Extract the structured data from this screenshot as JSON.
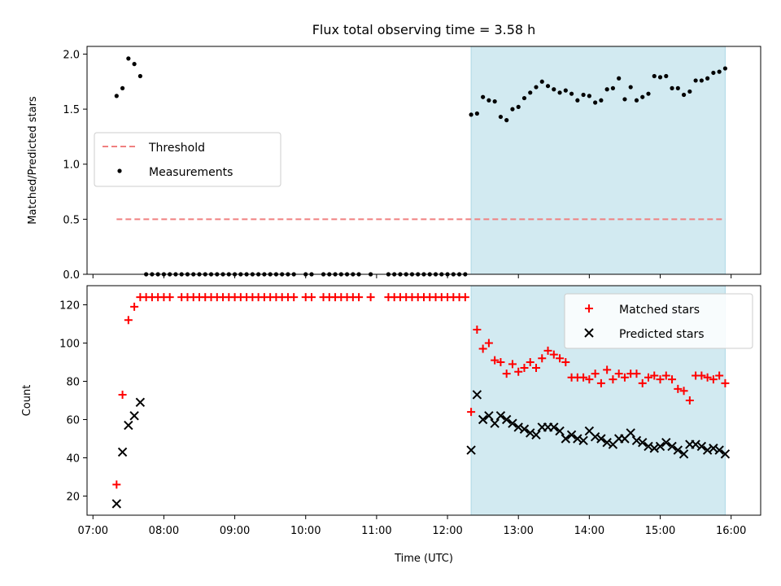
{
  "chart_data": [
    {
      "type": "scatter",
      "title": "Flux total observing time = 3.58 h",
      "xlabel": "",
      "ylabel": "Matched/Predicted stars",
      "xlim": [
        "06:55",
        "16:25"
      ],
      "ylim": [
        0,
        2.07
      ],
      "yticks": [
        0.0,
        0.5,
        1.0,
        1.5,
        2.0
      ],
      "ytick_labels": [
        "0.0",
        "0.5",
        "1.0",
        "1.5",
        "2.0"
      ],
      "grid": false,
      "legend_placement": "center-left",
      "shaded_region": {
        "x_start": "12:20",
        "x_end": "15:55",
        "color": "#add8e6"
      },
      "series": [
        {
          "name": "Threshold",
          "style": "dashed-line",
          "color": "#f08080",
          "x": [
            "07:20",
            "15:55"
          ],
          "y": [
            0.5,
            0.5
          ]
        },
        {
          "name": "Measurements",
          "style": "dot",
          "color": "#000000",
          "x": [
            "07:20",
            "07:25",
            "07:30",
            "07:35",
            "07:40",
            "07:45",
            "07:50",
            "07:55",
            "08:00",
            "08:05",
            "08:10",
            "08:15",
            "08:20",
            "08:25",
            "08:30",
            "08:35",
            "08:40",
            "08:45",
            "08:50",
            "08:55",
            "09:00",
            "09:05",
            "09:10",
            "09:15",
            "09:20",
            "09:25",
            "09:30",
            "09:35",
            "09:40",
            "09:45",
            "09:50",
            "10:00",
            "10:05",
            "10:15",
            "10:20",
            "10:25",
            "10:30",
            "10:35",
            "10:40",
            "10:45",
            "10:55",
            "11:10",
            "11:15",
            "11:20",
            "11:25",
            "11:30",
            "11:35",
            "11:40",
            "11:45",
            "11:50",
            "11:55",
            "12:00",
            "12:05",
            "12:10",
            "12:15",
            "12:20",
            "12:25",
            "12:30",
            "12:35",
            "12:40",
            "12:45",
            "12:50",
            "12:55",
            "13:00",
            "13:05",
            "13:10",
            "13:15",
            "13:20",
            "13:25",
            "13:30",
            "13:35",
            "13:40",
            "13:45",
            "13:50",
            "13:55",
            "14:00",
            "14:05",
            "14:10",
            "14:15",
            "14:20",
            "14:25",
            "14:30",
            "14:35",
            "14:40",
            "14:45",
            "14:50",
            "14:55",
            "15:00",
            "15:05",
            "15:10",
            "15:15",
            "15:20",
            "15:25",
            "15:30",
            "15:35",
            "15:40",
            "15:45",
            "15:50",
            "15:55"
          ],
          "y": [
            1.62,
            1.69,
            1.96,
            1.91,
            1.8,
            0,
            0,
            0,
            0,
            0,
            0,
            0,
            0,
            0,
            0,
            0,
            0,
            0,
            0,
            0,
            0,
            0,
            0,
            0,
            0,
            0,
            0,
            0,
            0,
            0,
            0,
            0,
            0,
            0,
            0,
            0,
            0,
            0,
            0,
            0,
            0,
            0,
            0,
            0,
            0,
            0,
            0,
            0,
            0,
            0,
            0,
            0,
            0,
            0,
            0,
            1.45,
            1.46,
            1.61,
            1.58,
            1.57,
            1.43,
            1.4,
            1.5,
            1.52,
            1.6,
            1.65,
            1.7,
            1.75,
            1.71,
            1.68,
            1.65,
            1.67,
            1.64,
            1.58,
            1.63,
            1.62,
            1.56,
            1.58,
            1.68,
            1.69,
            1.78,
            1.59,
            1.7,
            1.58,
            1.61,
            1.64,
            1.8,
            1.79,
            1.8,
            1.69,
            1.69,
            1.63,
            1.66,
            1.76,
            1.76,
            1.78,
            1.83,
            1.84,
            1.87
          ]
        }
      ]
    },
    {
      "type": "scatter",
      "title": "",
      "xlabel": "Time (UTC)",
      "ylabel": "Count",
      "xlim": [
        "06:55",
        "16:25"
      ],
      "ylim": [
        10,
        130
      ],
      "yticks": [
        20,
        40,
        60,
        80,
        100,
        120
      ],
      "ytick_labels": [
        "20",
        "40",
        "60",
        "80",
        "100",
        "120"
      ],
      "xticks": [
        "07:00",
        "08:00",
        "09:00",
        "10:00",
        "11:00",
        "12:00",
        "13:00",
        "14:00",
        "15:00",
        "16:00"
      ],
      "grid": false,
      "legend_placement": "upper-right",
      "shaded_region": {
        "x_start": "12:20",
        "x_end": "15:55",
        "color": "#add8e6"
      },
      "series": [
        {
          "name": "Matched stars",
          "style": "plus",
          "color": "#ff0000",
          "x": [
            "07:20",
            "07:25",
            "07:30",
            "07:35",
            "07:40",
            "07:45",
            "07:50",
            "07:55",
            "08:00",
            "08:05",
            "08:15",
            "08:20",
            "08:25",
            "08:30",
            "08:35",
            "08:40",
            "08:45",
            "08:50",
            "08:55",
            "09:00",
            "09:05",
            "09:10",
            "09:15",
            "09:20",
            "09:25",
            "09:30",
            "09:35",
            "09:40",
            "09:45",
            "09:50",
            "10:00",
            "10:05",
            "10:15",
            "10:20",
            "10:25",
            "10:30",
            "10:35",
            "10:40",
            "10:45",
            "10:55",
            "11:10",
            "11:15",
            "11:20",
            "11:25",
            "11:30",
            "11:35",
            "11:40",
            "11:45",
            "11:50",
            "11:55",
            "12:00",
            "12:05",
            "12:10",
            "12:15",
            "12:20",
            "12:25",
            "12:30",
            "12:35",
            "12:40",
            "12:45",
            "12:50",
            "12:55",
            "13:00",
            "13:05",
            "13:10",
            "13:15",
            "13:20",
            "13:25",
            "13:30",
            "13:35",
            "13:40",
            "13:45",
            "13:50",
            "13:55",
            "14:00",
            "14:05",
            "14:10",
            "14:15",
            "14:20",
            "14:25",
            "14:30",
            "14:35",
            "14:40",
            "14:45",
            "14:50",
            "14:55",
            "15:00",
            "15:05",
            "15:10",
            "15:15",
            "15:20",
            "15:25",
            "15:30",
            "15:35",
            "15:40",
            "15:45",
            "15:50",
            "15:55"
          ],
          "y": [
            26,
            73,
            112,
            119,
            124,
            124,
            124,
            124,
            124,
            124,
            124,
            124,
            124,
            124,
            124,
            124,
            124,
            124,
            124,
            124,
            124,
            124,
            124,
            124,
            124,
            124,
            124,
            124,
            124,
            124,
            124,
            124,
            124,
            124,
            124,
            124,
            124,
            124,
            124,
            124,
            124,
            124,
            124,
            124,
            124,
            124,
            124,
            124,
            124,
            124,
            124,
            124,
            124,
            124,
            64,
            107,
            97,
            100,
            91,
            90,
            84,
            89,
            85,
            87,
            90,
            87,
            92,
            96,
            94,
            92,
            90,
            82,
            82,
            82,
            81,
            84,
            79,
            86,
            81,
            84,
            82,
            84,
            84,
            79,
            82,
            83,
            81,
            83,
            81,
            76,
            75,
            70,
            83,
            83,
            82,
            81,
            83,
            79
          ]
        },
        {
          "name": "Predicted stars",
          "style": "x",
          "color": "#000000",
          "x": [
            "07:20",
            "07:25",
            "07:30",
            "07:35",
            "07:40",
            "12:20",
            "12:25",
            "12:30",
            "12:35",
            "12:40",
            "12:45",
            "12:50",
            "12:55",
            "13:00",
            "13:05",
            "13:10",
            "13:15",
            "13:20",
            "13:25",
            "13:30",
            "13:35",
            "13:40",
            "13:45",
            "13:50",
            "13:55",
            "14:00",
            "14:05",
            "14:10",
            "14:15",
            "14:20",
            "14:25",
            "14:30",
            "14:35",
            "14:40",
            "14:45",
            "14:50",
            "14:55",
            "15:00",
            "15:05",
            "15:10",
            "15:15",
            "15:20",
            "15:25",
            "15:30",
            "15:35",
            "15:40",
            "15:45",
            "15:50",
            "15:55"
          ],
          "y": [
            16,
            43,
            57,
            62,
            69,
            44,
            73,
            60,
            62,
            58,
            62,
            60,
            58,
            56,
            55,
            53,
            52,
            56,
            56,
            56,
            54,
            50,
            52,
            50,
            49,
            54,
            51,
            50,
            48,
            47,
            50,
            50,
            53,
            49,
            48,
            46,
            45,
            46,
            48,
            46,
            44,
            42,
            47,
            47,
            46,
            44,
            45,
            44,
            42
          ]
        }
      ]
    }
  ]
}
